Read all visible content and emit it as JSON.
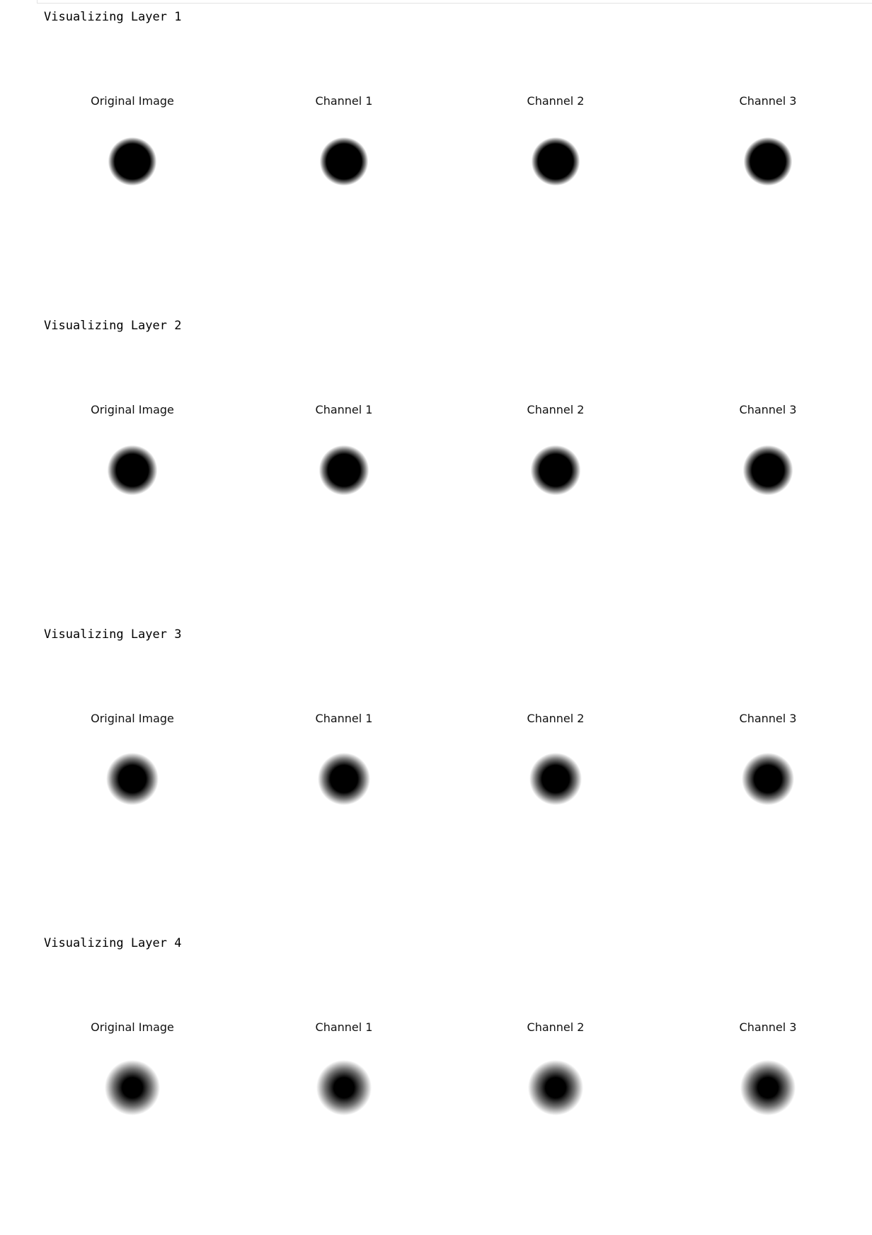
{
  "notebook": {
    "layers": [
      {
        "heading": "Visualizing Layer 1",
        "blur": 0.08,
        "panels": [
          {
            "title": "Original Image"
          },
          {
            "title": "Channel 1"
          },
          {
            "title": "Channel 2"
          },
          {
            "title": "Channel 3"
          }
        ]
      },
      {
        "heading": "Visualizing Layer 2",
        "blur": 0.15,
        "panels": [
          {
            "title": "Original Image"
          },
          {
            "title": "Channel 1"
          },
          {
            "title": "Channel 2"
          },
          {
            "title": "Channel 3"
          }
        ]
      },
      {
        "heading": "Visualizing Layer 3",
        "blur": 0.25,
        "panels": [
          {
            "title": "Original Image"
          },
          {
            "title": "Channel 1"
          },
          {
            "title": "Channel 2"
          },
          {
            "title": "Channel 3"
          }
        ]
      },
      {
        "heading": "Visualizing Layer 4",
        "blur": 0.38,
        "panels": [
          {
            "title": "Original Image"
          },
          {
            "title": "Channel 1"
          },
          {
            "title": "Channel 2"
          },
          {
            "title": "Channel 3"
          }
        ]
      }
    ],
    "colors": {
      "blob": "#000000",
      "background": "#ffffff",
      "cell_border": "#e3e3e3"
    }
  }
}
